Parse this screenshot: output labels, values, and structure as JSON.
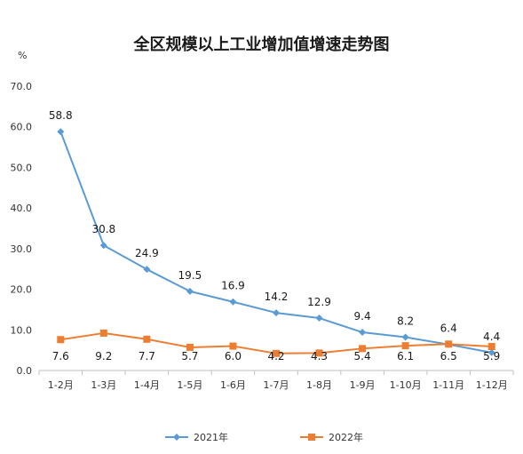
{
  "chart_data": {
    "type": "line",
    "title": "全区规模以上工业增加值增速走势图",
    "ylabel": "%",
    "ylim": [
      0,
      70
    ],
    "yticks": [
      "0.0",
      "10.0",
      "20.0",
      "30.0",
      "40.0",
      "50.0",
      "60.0",
      "70.0"
    ],
    "categories": [
      "1-2月",
      "1-3月",
      "1-4月",
      "1-5月",
      "1-6月",
      "1-7月",
      "1-8月",
      "1-9月",
      "1-10月",
      "1-11月",
      "1-12月"
    ],
    "grid": false,
    "legend": "bottom",
    "series": [
      {
        "name": "2021年",
        "color": "#5B9BD5",
        "marker": "diamond",
        "values": [
          58.8,
          30.8,
          24.9,
          19.5,
          16.9,
          14.2,
          12.9,
          9.4,
          8.2,
          6.4,
          4.4
        ],
        "labels": [
          "58.8",
          "30.8",
          "24.9",
          "19.5",
          "16.9",
          "14.2",
          "12.9",
          "9.4",
          "8.2",
          "6.4",
          "4.4"
        ]
      },
      {
        "name": "2022年",
        "color": "#ED7D31",
        "marker": "square",
        "values": [
          7.6,
          9.2,
          7.7,
          5.7,
          6.0,
          4.2,
          4.3,
          5.4,
          6.1,
          6.5,
          5.9
        ],
        "labels": [
          "7.6",
          "9.2",
          "7.7",
          "5.7",
          "6.0",
          "4.2",
          "4.3",
          "5.4",
          "6.1",
          "6.5",
          "5.9"
        ]
      }
    ]
  }
}
